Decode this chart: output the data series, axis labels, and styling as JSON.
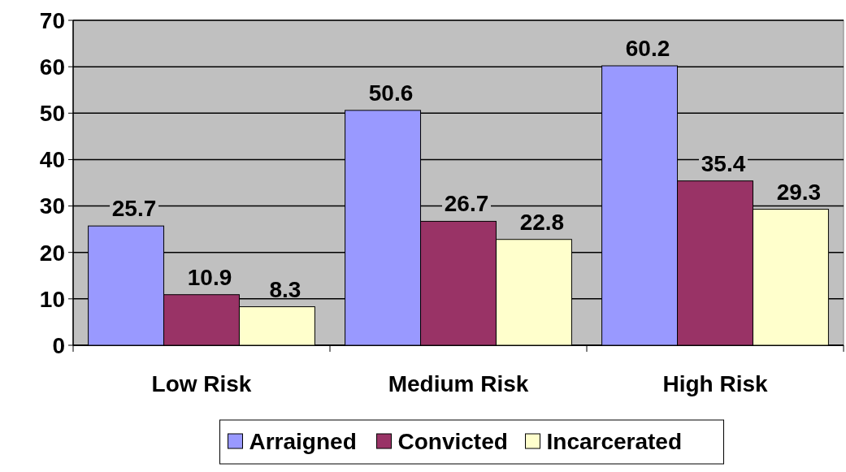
{
  "chart_data": {
    "type": "bar",
    "categories": [
      "Low Risk",
      "Medium Risk",
      "High Risk"
    ],
    "series": [
      {
        "name": "Arraigned",
        "color": "#9999ff",
        "values": [
          25.7,
          50.6,
          60.2
        ]
      },
      {
        "name": "Convicted",
        "color": "#993366",
        "values": [
          10.9,
          26.7,
          35.4
        ]
      },
      {
        "name": "Incarcerated",
        "color": "#ffffcc",
        "values": [
          8.3,
          22.8,
          29.3
        ]
      }
    ],
    "ylim": [
      0,
      70
    ],
    "yticks": [
      0,
      10,
      20,
      30,
      40,
      50,
      60,
      70
    ],
    "grid": "y",
    "legend": "bottom",
    "data_labels": true
  }
}
